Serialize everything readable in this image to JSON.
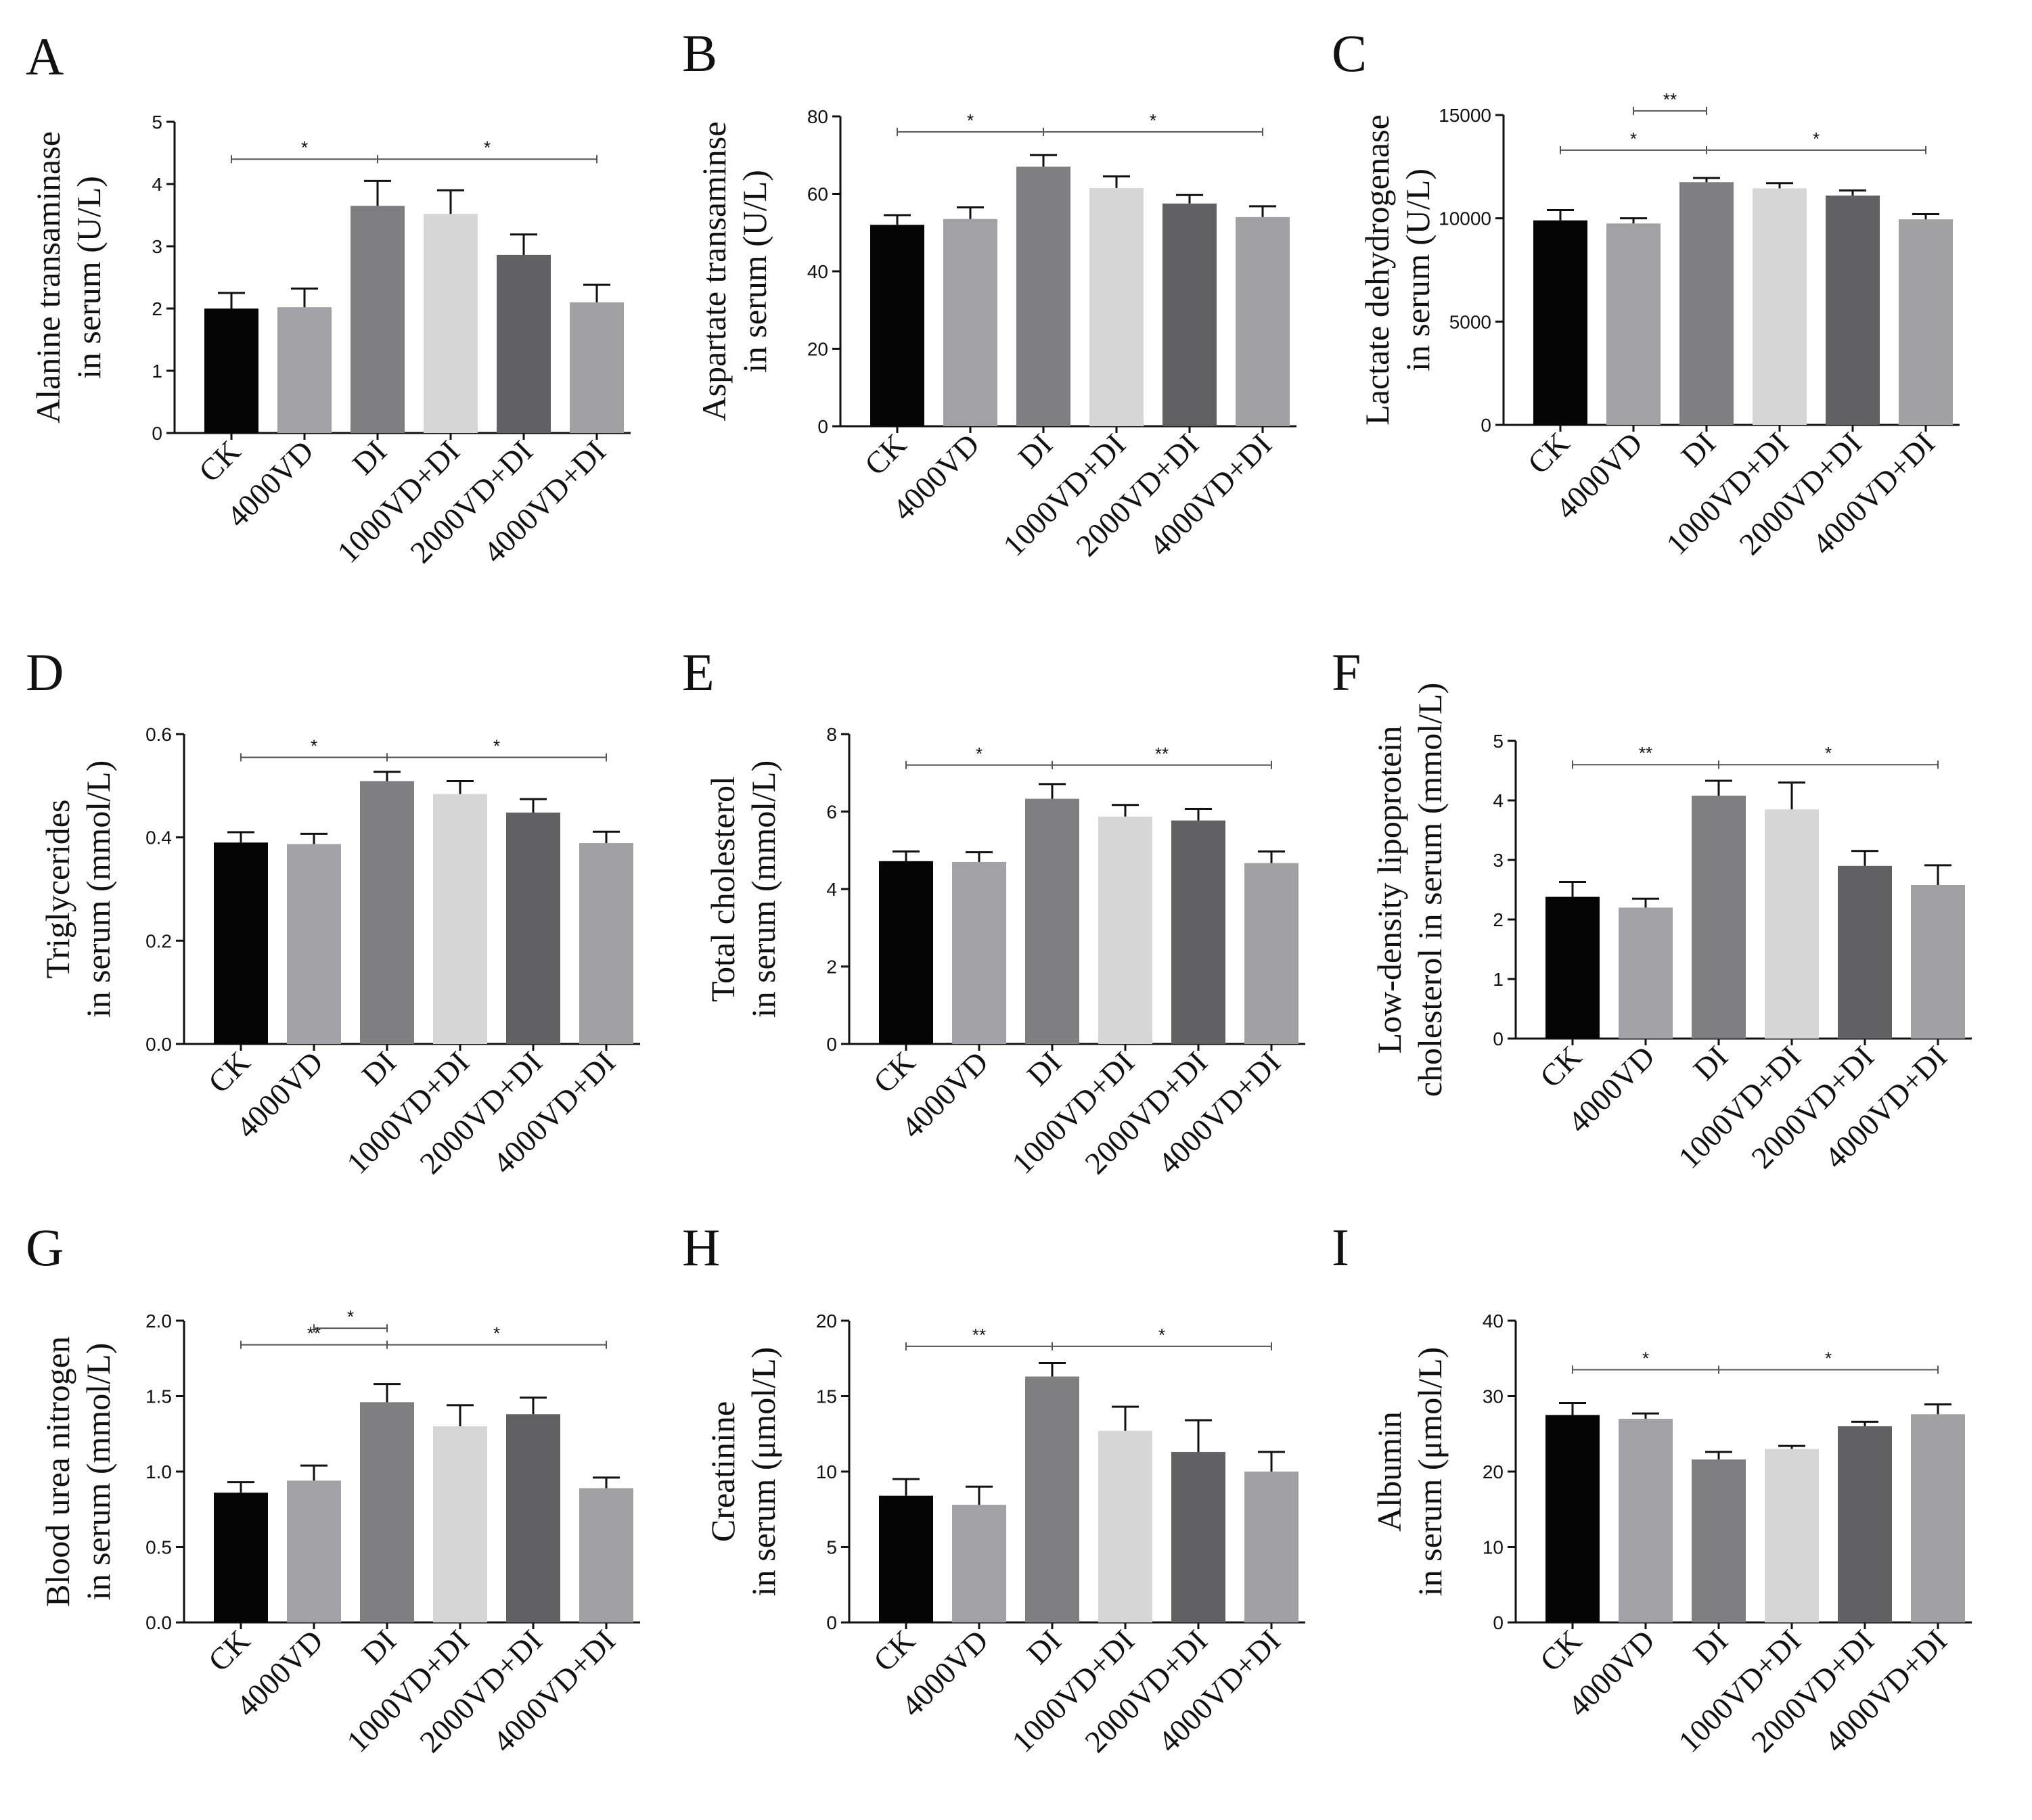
{
  "categories": [
    "CK",
    "4000VD",
    "DI",
    "1000VD+DI",
    "2000VD+DI",
    "4000VD+DI"
  ],
  "bar_colors": [
    "#050505",
    "#a2a2a6",
    "#7f7f81",
    "#d6d6d6",
    "#616163",
    "#a1a1a4"
  ],
  "chart_data": [
    {
      "type": "bar",
      "panel": "A",
      "ylabel": [
        "Alanine transaminase",
        "in serum (U/L)"
      ],
      "ylim": [
        0,
        5
      ],
      "yticks": [
        0,
        1,
        2,
        3,
        4,
        5
      ],
      "ytick_labels": [
        "0",
        "1",
        "2",
        "3",
        "4",
        "5"
      ],
      "values": [
        2.0,
        2.02,
        3.65,
        3.52,
        2.86,
        2.1
      ],
      "errors": [
        0.25,
        0.3,
        0.4,
        0.38,
        0.33,
        0.28
      ],
      "significance": [
        {
          "from": 0,
          "to": 2,
          "y": 4.4,
          "label": "*"
        },
        {
          "from": 2,
          "to": 5,
          "y": 4.4,
          "label": "*"
        }
      ]
    },
    {
      "type": "bar",
      "panel": "B",
      "ylabel": [
        "Aspartate transaminse",
        "in serum (U/L)"
      ],
      "ylim": [
        0,
        80
      ],
      "yticks": [
        0,
        20,
        40,
        60,
        80
      ],
      "ytick_labels": [
        "0",
        "20",
        "40",
        "60",
        "80"
      ],
      "values": [
        52,
        53.5,
        67,
        61.5,
        57.5,
        54
      ],
      "errors": [
        2.5,
        3,
        3,
        3,
        2.2,
        2.8
      ],
      "significance": [
        {
          "from": 0,
          "to": 2,
          "y": 76,
          "label": "*"
        },
        {
          "from": 2,
          "to": 5,
          "y": 76,
          "label": "*"
        }
      ]
    },
    {
      "type": "bar",
      "panel": "C",
      "ylabel": [
        "Lactate dehydrogenase",
        "in serum (U/L)"
      ],
      "ylim": [
        0,
        15000
      ],
      "yticks": [
        0,
        5000,
        10000,
        15000
      ],
      "ytick_labels": [
        "0",
        "5000",
        "10000",
        "15000"
      ],
      "values": [
        9900,
        9750,
        11750,
        11450,
        11100,
        9950
      ],
      "errors": [
        500,
        250,
        200,
        250,
        250,
        250
      ],
      "significance": [
        {
          "from": 1,
          "to": 2,
          "y": 15200,
          "label": "**"
        },
        {
          "from": 0,
          "to": 2,
          "y": 13300,
          "label": "*"
        },
        {
          "from": 2,
          "to": 5,
          "y": 13300,
          "label": "*"
        }
      ]
    },
    {
      "type": "bar",
      "panel": "D",
      "ylabel": [
        "Triglycerides",
        "in serum (mmol/L)"
      ],
      "ylim": [
        0,
        0.6
      ],
      "yticks": [
        0,
        0.2,
        0.4,
        0.6
      ],
      "ytick_labels": [
        "0.0",
        "0.2",
        "0.4",
        "0.6"
      ],
      "values": [
        0.39,
        0.387,
        0.509,
        0.484,
        0.448,
        0.389
      ],
      "errors": [
        0.02,
        0.02,
        0.018,
        0.025,
        0.026,
        0.022
      ],
      "significance": [
        {
          "from": 0,
          "to": 2,
          "y": 0.555,
          "label": "*"
        },
        {
          "from": 2,
          "to": 5,
          "y": 0.555,
          "label": "*"
        }
      ]
    },
    {
      "type": "bar",
      "panel": "E",
      "ylabel": [
        "Total cholesterol",
        "in serum (mmol/L)"
      ],
      "ylim": [
        0,
        8
      ],
      "yticks": [
        0,
        2,
        4,
        6,
        8
      ],
      "ytick_labels": [
        "0",
        "2",
        "4",
        "6",
        "8"
      ],
      "values": [
        4.72,
        4.7,
        6.33,
        5.87,
        5.77,
        4.67
      ],
      "errors": [
        0.25,
        0.25,
        0.38,
        0.3,
        0.3,
        0.3
      ],
      "significance": [
        {
          "from": 0,
          "to": 2,
          "y": 7.2,
          "label": "*"
        },
        {
          "from": 2,
          "to": 5,
          "y": 7.2,
          "label": "**"
        }
      ]
    },
    {
      "type": "bar",
      "panel": "F",
      "ylabel": [
        "Low-density lipoprotein",
        "cholesterol in serum (mmol/L)"
      ],
      "ylim": [
        0,
        5
      ],
      "yticks": [
        0,
        1,
        2,
        3,
        4,
        5
      ],
      "ytick_labels": [
        "0",
        "1",
        "2",
        "3",
        "4",
        "5"
      ],
      "values": [
        2.38,
        2.2,
        4.08,
        3.85,
        2.9,
        2.58
      ],
      "errors": [
        0.25,
        0.15,
        0.25,
        0.45,
        0.25,
        0.33
      ],
      "significance": [
        {
          "from": 0,
          "to": 2,
          "y": 4.6,
          "label": "**"
        },
        {
          "from": 2,
          "to": 5,
          "y": 4.6,
          "label": "*"
        }
      ]
    },
    {
      "type": "bar",
      "panel": "G",
      "ylabel": [
        "Blood urea nitrogen",
        "in serum (mmol/L)"
      ],
      "ylim": [
        0,
        2.0
      ],
      "yticks": [
        0,
        0.5,
        1.0,
        1.5,
        2.0
      ],
      "ytick_labels": [
        "0.0",
        "0.5",
        "1.0",
        "1.5",
        "2.0"
      ],
      "values": [
        0.86,
        0.94,
        1.46,
        1.3,
        1.38,
        0.89
      ],
      "errors": [
        0.07,
        0.1,
        0.12,
        0.14,
        0.11,
        0.07
      ],
      "significance": [
        {
          "from": 1,
          "to": 2,
          "y": 1.95,
          "label": "*"
        },
        {
          "from": 0,
          "to": 2,
          "y": 1.84,
          "label": "**"
        },
        {
          "from": 2,
          "to": 5,
          "y": 1.84,
          "label": "*"
        }
      ]
    },
    {
      "type": "bar",
      "panel": "H",
      "ylabel": [
        "Creatinine",
        "in serum (μmol/L)"
      ],
      "ylim": [
        0,
        20
      ],
      "yticks": [
        0,
        5,
        10,
        15,
        20
      ],
      "ytick_labels": [
        "0",
        "5",
        "10",
        "15",
        "20"
      ],
      "values": [
        8.4,
        7.8,
        16.3,
        12.7,
        11.3,
        10.0
      ],
      "errors": [
        1.1,
        1.2,
        0.9,
        1.6,
        2.1,
        1.3
      ],
      "significance": [
        {
          "from": 0,
          "to": 2,
          "y": 18.3,
          "label": "**"
        },
        {
          "from": 2,
          "to": 5,
          "y": 18.3,
          "label": "*"
        }
      ]
    },
    {
      "type": "bar",
      "panel": "I",
      "ylabel": [
        "Albumin",
        "in serum (μmol/L)"
      ],
      "ylim": [
        0,
        40
      ],
      "yticks": [
        0,
        10,
        20,
        30,
        40
      ],
      "ytick_labels": [
        "0",
        "10",
        "20",
        "30",
        "40"
      ],
      "values": [
        27.5,
        27.0,
        21.6,
        23.0,
        26.0,
        27.6
      ],
      "errors": [
        1.6,
        0.7,
        1.0,
        0.4,
        0.6,
        1.3
      ],
      "significance": [
        {
          "from": 0,
          "to": 2,
          "y": 33.5,
          "label": "*"
        },
        {
          "from": 2,
          "to": 5,
          "y": 33.5,
          "label": "*"
        }
      ]
    }
  ]
}
